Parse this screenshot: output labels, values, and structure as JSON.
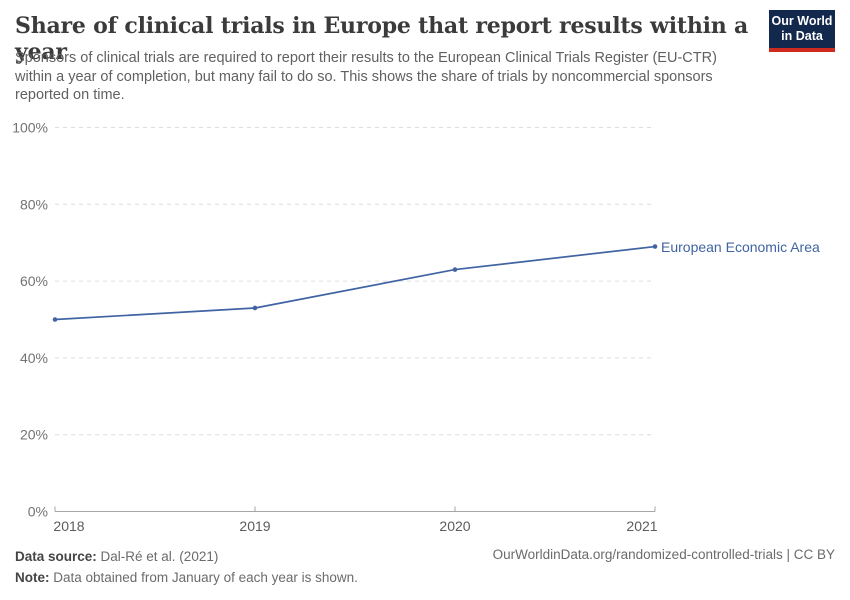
{
  "header": {
    "title": "Share of clinical trials in Europe that report results within a year",
    "subtitle": "Sponsors of clinical trials are required to report their results to the European Clinical Trials Register (EU-CTR) within a year of completion, but many fail to do so. This shows the share of trials by noncommercial sponsors reported on time.",
    "logo": {
      "line1": "Our World",
      "line2": "in Data"
    }
  },
  "chart_data": {
    "type": "line",
    "title": "Share of clinical trials in Europe that report results within a year",
    "x": [
      2018,
      2019,
      2020,
      2021
    ],
    "series": [
      {
        "name": "European Economic Area",
        "values": [
          50,
          53,
          63,
          69
        ],
        "color": "#4063a3"
      }
    ],
    "xlabel": "",
    "ylabel": "",
    "ylim": [
      0,
      100
    ],
    "yticks": [
      0,
      20,
      40,
      60,
      80,
      100
    ],
    "ytick_format": "{}%",
    "grid": "horizontal-dashed",
    "legend_position": "end-of-line-label",
    "note": "Data obtained from January of each year is shown."
  },
  "footer": {
    "data_source_label": "Data source:",
    "data_source_value": " Dal-Ré et al. (2021)",
    "note_label": "Note:",
    "note_value": " Data obtained from January of each year is shown.",
    "attribution": "OurWorldinData.org/randomized-controlled-trials | CC BY"
  },
  "colors": {
    "line": "#4063a3",
    "gridline": "#dcdcdc",
    "axis": "#a6a6a6",
    "title_text": "#3b3b3b",
    "subtitle_text": "#616161",
    "logo_bg": "#12294d",
    "logo_stripe": "#ce2a1d"
  }
}
